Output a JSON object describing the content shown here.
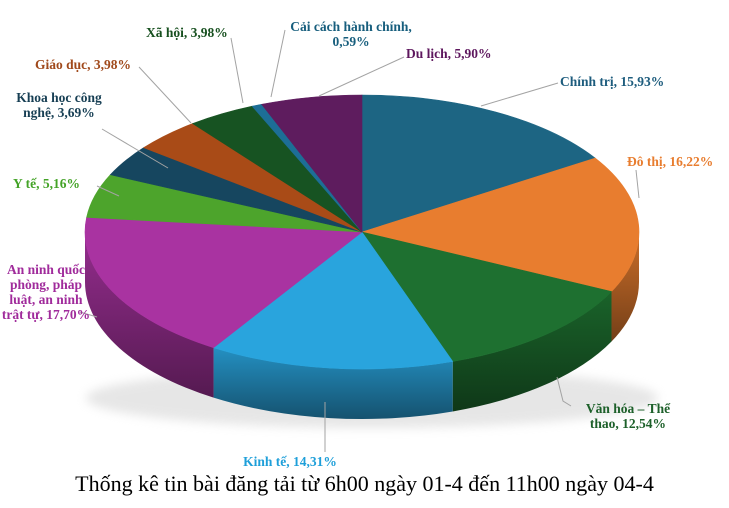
{
  "chart_data": {
    "type": "pie",
    "effect": "3d",
    "title": "Thống kê tin bài đăng tải từ 6h00 ngày 01-4 đến 11h00 ngày 04-4",
    "unit": "%",
    "decimal_separator": ",",
    "start_angle_deg": 0,
    "direction": "clockwise",
    "legend_position": "none",
    "labels_outside_with_leader_lines": true,
    "slices": [
      {
        "id": "chinh-tri",
        "name": "Chính trị",
        "value": 15.93,
        "label": "Chính trị, 15,93%",
        "color": "#1D6583",
        "label_color": "#1D5C7D"
      },
      {
        "id": "do-thi",
        "name": "Đô thị",
        "value": 16.22,
        "label": "Đô thị, 16,22%",
        "color": "#E87D2F",
        "label_color": "#E87D2F"
      },
      {
        "id": "van-hoa",
        "name": "Văn hóa – Thể thao",
        "value": 12.54,
        "label": "Văn hóa – Thể thao, 12,54%",
        "color": "#1E7030",
        "label_color": "#1D602A"
      },
      {
        "id": "kinh-te",
        "name": "Kinh tế",
        "value": 14.31,
        "label": "Kinh tế, 14,31%",
        "color": "#29A4DD",
        "label_color": "#1E9FD9"
      },
      {
        "id": "an-ninh",
        "name": "An ninh quốc phòng, pháp luật, an ninh trật tự",
        "value": 17.7,
        "label": "An ninh quốc phòng, pháp luật, an ninh trật tự, 17,70%",
        "color": "#A933A1",
        "label_color": "#A02B9B"
      },
      {
        "id": "y-te",
        "name": "Y tế",
        "value": 5.16,
        "label": "Y tế, 5,16%",
        "color": "#4DA42C",
        "label_color": "#44A327"
      },
      {
        "id": "khoa-hoc",
        "name": "Khoa học công nghệ",
        "value": 3.69,
        "label": "Khoa học công nghệ, 3,69%",
        "color": "#16465F",
        "label_color": "#173F54"
      },
      {
        "id": "giao-duc",
        "name": "Giáo dục",
        "value": 3.98,
        "label": "Giáo dục, 3,98%",
        "color": "#A94B17",
        "label_color": "#A0491B"
      },
      {
        "id": "xa-hoi",
        "name": "Xã hội",
        "value": 3.98,
        "label": "Xã hội, 3,98%",
        "color": "#175322",
        "label_color": "#17501F"
      },
      {
        "id": "cai-cach",
        "name": "Cải cách hành chính",
        "value": 0.59,
        "label": "Cải cách hành chính, 0,59%",
        "color": "#1D6E96",
        "label_color": "#175E7D"
      },
      {
        "id": "du-lich",
        "name": "Du lịch",
        "value": 5.9,
        "label": "Du lịch, 5,90%",
        "color": "#5E1C5E",
        "label_color": "#5E175E"
      }
    ]
  }
}
